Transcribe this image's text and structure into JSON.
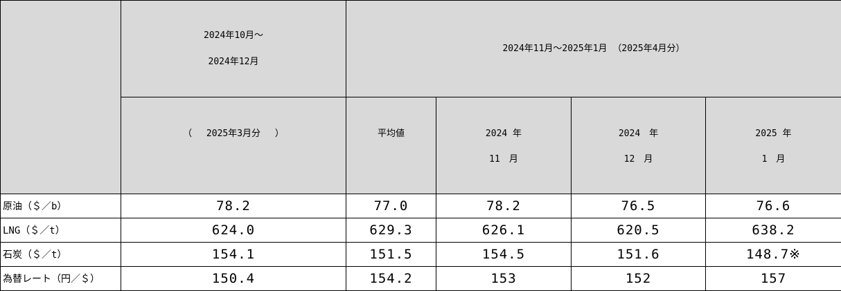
{
  "header": {
    "period_a_line1": "2024年10月～",
    "period_a_line2": "2024年12月",
    "period_b": "2024年11月～2025年1月 （2025年4月分）",
    "period_a_sub": "（　 2025年3月分　 ）",
    "avg_label": "平均値",
    "m1_line1": "2024 年",
    "m1_line2": "11　月",
    "m2_line1": "2024　年",
    "m2_line2": "12　月",
    "m3_line1": "2025 年",
    "m3_line2": "1　月"
  },
  "rows": [
    {
      "label": "原油（＄／b）",
      "values": [
        "78.2",
        "77.0",
        "78.2",
        "76.5",
        "76.6"
      ]
    },
    {
      "label": "LNG（＄／t）",
      "values": [
        "624.0",
        "629.3",
        "626.1",
        "620.5",
        "638.2"
      ]
    },
    {
      "label": "石炭（＄／t）",
      "values": [
        "154.1",
        "151.5",
        "154.5",
        "151.6",
        "148.7※"
      ]
    },
    {
      "label": "為替レート（円／＄）",
      "values": [
        "150.4",
        "154.2",
        "153",
        "152",
        "157"
      ]
    }
  ]
}
